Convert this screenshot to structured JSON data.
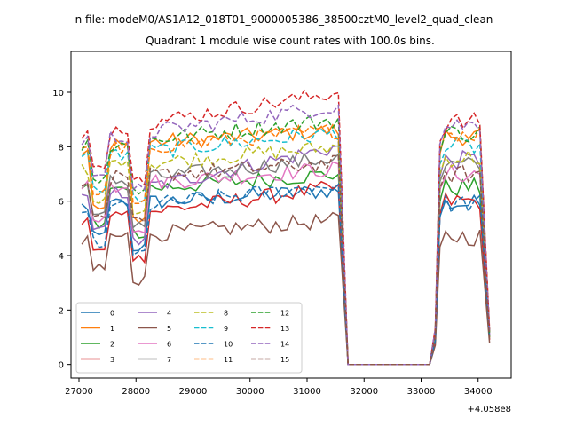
{
  "chart_data": {
    "type": "line",
    "suptitle": "n file: modeM0/AS1A12_018T01_9000005386_38500cztM0_level2_quad_clean",
    "title": "Quadrant 1 module wise count rates with 100.0s bins.",
    "xlabel": "",
    "ylabel": "",
    "x_offset_label": "+4.058e8",
    "xlim": [
      26860,
      34580
    ],
    "ylim": [
      -0.5,
      11.5
    ],
    "xticks": [
      27000,
      28000,
      29000,
      30000,
      31000,
      32000,
      33000,
      34000
    ],
    "xtick_labels": [
      "27000",
      "28000",
      "29000",
      "30000",
      "31000",
      "32000",
      "33000",
      "34000"
    ],
    "yticks": [
      0,
      2,
      4,
      6,
      8,
      10
    ],
    "ytick_labels": [
      "0",
      "2",
      "4",
      "6",
      "8",
      "10"
    ],
    "grid": false,
    "legend_placement": "lower-left",
    "legend_columns": 4,
    "segments": {
      "seg1_start": 27050,
      "seg1_end": 31550,
      "drop_end": 31720,
      "zero_end": 33150,
      "rise_end": 33330,
      "seg2_end": 34200,
      "bin": 100
    },
    "series": [
      {
        "name": "0",
        "color": "#1f77b4",
        "dash": "solid",
        "level1": [
          5.8,
          6.4
        ],
        "low": 4.7,
        "level2": 5.9,
        "end": 1.0
      },
      {
        "name": "1",
        "color": "#ff7f0e",
        "dash": "solid",
        "level1": [
          8.0,
          8.6
        ],
        "low": 5.8,
        "level2": 8.4,
        "end": 1.2
      },
      {
        "name": "2",
        "color": "#2ca02c",
        "dash": "solid",
        "level1": [
          6.3,
          7.0
        ],
        "low": 5.2,
        "level2": 6.5,
        "end": 1.0
      },
      {
        "name": "3",
        "color": "#d62728",
        "dash": "solid",
        "level1": [
          5.3,
          6.5
        ],
        "low": 4.3,
        "level2": 6.0,
        "end": 0.9
      },
      {
        "name": "4",
        "color": "#9467bd",
        "dash": "solid",
        "level1": [
          6.0,
          8.0
        ],
        "low": 4.9,
        "level2": 7.5,
        "end": 1.1
      },
      {
        "name": "5",
        "color": "#8c564b",
        "dash": "solid",
        "level1": [
          4.6,
          5.3
        ],
        "low": 3.5,
        "level2": 4.7,
        "end": 0.8
      },
      {
        "name": "6",
        "color": "#e377c2",
        "dash": "solid",
        "level1": [
          6.5,
          7.2
        ],
        "low": 5.4,
        "level2": 7.0,
        "end": 1.1
      },
      {
        "name": "7",
        "color": "#7f7f7f",
        "dash": "solid",
        "level1": [
          6.6,
          7.6
        ],
        "low": 5.5,
        "level2": 7.3,
        "end": 1.2
      },
      {
        "name": "8",
        "color": "#bcbd22",
        "dash": "dashed",
        "level1": [
          7.2,
          8.0
        ],
        "low": 6.1,
        "level2": 7.6,
        "end": 1.0
      },
      {
        "name": "9",
        "color": "#17becf",
        "dash": "dashed",
        "level1": [
          7.6,
          8.5
        ],
        "low": 6.5,
        "level2": 8.0,
        "end": 1.2
      },
      {
        "name": "10",
        "color": "#1f77b4",
        "dash": "dashed",
        "level1": [
          5.6,
          6.6
        ],
        "low": 4.5,
        "level2": 5.9,
        "end": 1.0
      },
      {
        "name": "11",
        "color": "#ff7f0e",
        "dash": "dashed",
        "level1": [
          7.8,
          8.6
        ],
        "low": 6.3,
        "level2": 8.5,
        "end": 1.2
      },
      {
        "name": "12",
        "color": "#2ca02c",
        "dash": "dashed",
        "level1": [
          8.0,
          9.0
        ],
        "low": 6.8,
        "level2": 8.5,
        "end": 1.1
      },
      {
        "name": "13",
        "color": "#d62728",
        "dash": "dashed",
        "level1": [
          8.5,
          10.0
        ],
        "low": 7.2,
        "level2": 8.9,
        "end": 1.3
      },
      {
        "name": "14",
        "color": "#9467bd",
        "dash": "dashed",
        "level1": [
          8.2,
          9.5
        ],
        "low": 6.9,
        "level2": 8.8,
        "end": 1.2
      },
      {
        "name": "15",
        "color": "#8c564b",
        "dash": "dashed",
        "level1": [
          6.8,
          7.4
        ],
        "low": 5.6,
        "level2": 7.0,
        "end": 0.9
      }
    ]
  }
}
